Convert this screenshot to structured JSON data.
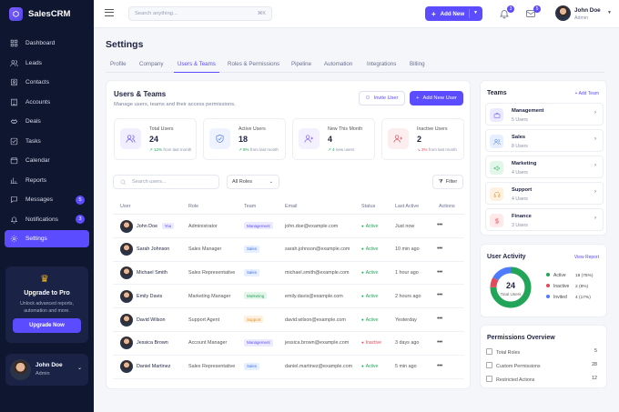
{
  "app": {
    "name": "SalesCRM"
  },
  "sidebar": {
    "items": [
      {
        "label": "Dashboard",
        "icon": "grid-icon"
      },
      {
        "label": "Leads",
        "icon": "users-icon"
      },
      {
        "label": "Contacts",
        "icon": "contact-icon"
      },
      {
        "label": "Accounts",
        "icon": "building-icon"
      },
      {
        "label": "Deals",
        "icon": "handshake-icon"
      },
      {
        "label": "Tasks",
        "icon": "checkbox-icon"
      },
      {
        "label": "Calendar",
        "icon": "calendar-icon"
      },
      {
        "label": "Reports",
        "icon": "bar-chart-icon"
      },
      {
        "label": "Messages",
        "icon": "message-icon",
        "badge": "5"
      },
      {
        "label": "Notifications",
        "icon": "bell-icon",
        "badge": "3"
      },
      {
        "label": "Settings",
        "icon": "gear-icon",
        "active": true
      }
    ],
    "upgrade": {
      "title": "Upgrade to Pro",
      "desc": "Unlock advanced reports, automation and more.",
      "button": "Upgrade Now"
    },
    "user": {
      "name": "John Doe",
      "role": "Admin"
    }
  },
  "topbar": {
    "search_placeholder": "Search anything...",
    "shortcut": "⌘K",
    "add_new": "Add New",
    "notifications_count": "3",
    "messages_count": "5",
    "user": {
      "name": "John Doe",
      "role": "Admin"
    }
  },
  "page": {
    "title": "Settings",
    "tabs": [
      "Profile",
      "Company",
      "Users & Teams",
      "Roles & Permissions",
      "Pipeline",
      "Automation",
      "Integrations",
      "Billing"
    ],
    "active_tab": "Users & Teams"
  },
  "users": {
    "title": "Users & Teams",
    "subtitle": "Manage users, teams and their access permissions.",
    "invite_label": "Invite User",
    "add_label": "Add New User",
    "stats": [
      {
        "label": "Total Users",
        "value": "24",
        "delta": "12%",
        "delta_text": "from last month",
        "trend": "up",
        "color": "#5b4cff"
      },
      {
        "label": "Active Users",
        "value": "18",
        "delta": "8%",
        "delta_text": "from last month",
        "trend": "up",
        "color": "#4f7cff"
      },
      {
        "label": "New This Month",
        "value": "4",
        "delta": "4",
        "delta_text": "new users",
        "trend": "up",
        "color": "#7c5cff"
      },
      {
        "label": "Inactive Users",
        "value": "2",
        "delta": "2%",
        "delta_text": "from last month",
        "trend": "down",
        "color": "#e04a5a"
      }
    ],
    "search_placeholder": "Search users...",
    "roles_filter": "All Roles",
    "filter_label": "Filter",
    "columns": [
      "User",
      "Role",
      "Team",
      "Email",
      "Status",
      "Last Active",
      "Actions"
    ],
    "rows": [
      {
        "name": "John Doe",
        "you": "You",
        "role": "Administrator",
        "team": "Management",
        "email": "john.doe@example.com",
        "status": "Active",
        "last": "Just now"
      },
      {
        "name": "Sarah Johnson",
        "role": "Sales Manager",
        "team": "Sales",
        "email": "sarah.johnson@example.com",
        "status": "Active",
        "last": "10 min ago"
      },
      {
        "name": "Michael Smith",
        "role": "Sales Representative",
        "team": "Sales",
        "email": "michael.smith@example.com",
        "status": "Active",
        "last": "1 hour ago"
      },
      {
        "name": "Emily Davis",
        "role": "Marketing Manager",
        "team": "Marketing",
        "email": "emily.davis@example.com",
        "status": "Active",
        "last": "2 hours ago"
      },
      {
        "name": "David Wilson",
        "role": "Support Agent",
        "team": "Support",
        "email": "david.wilson@example.com",
        "status": "Active",
        "last": "Yesterday"
      },
      {
        "name": "Jessica Brown",
        "role": "Account Manager",
        "team": "Management",
        "email": "jessica.brown@example.com",
        "status": "Inactive",
        "last": "3 days ago"
      },
      {
        "name": "Daniel Martinez",
        "role": "Sales Representative",
        "team": "Sales",
        "email": "daniel.martinez@example.com",
        "status": "Active",
        "last": "5 min ago"
      }
    ]
  },
  "team_colors": {
    "Management": {
      "bg": "#eceaff",
      "fg": "#5b4cff"
    },
    "Sales": {
      "bg": "#e6efff",
      "fg": "#3f6fe0"
    },
    "Marketing": {
      "bg": "#e3f6ea",
      "fg": "#22a559"
    },
    "Support": {
      "bg": "#fff1e0",
      "fg": "#e08a1e"
    }
  },
  "teams": {
    "title": "Teams",
    "add_label": "+ Add Team",
    "items": [
      {
        "name": "Management",
        "count": "5 Users",
        "color": "#5b4cff",
        "bg": "#eceaff",
        "icon": "briefcase-icon"
      },
      {
        "name": "Sales",
        "count": "8 Users",
        "color": "#3f6fe0",
        "bg": "#e6efff",
        "icon": "users-icon"
      },
      {
        "name": "Marketing",
        "count": "4 Users",
        "color": "#22a559",
        "bg": "#e3f6ea",
        "icon": "megaphone-icon"
      },
      {
        "name": "Support",
        "count": "4 Users",
        "color": "#e08a1e",
        "bg": "#fff1e0",
        "icon": "headset-icon"
      },
      {
        "name": "Finance",
        "count": "3 Users",
        "color": "#e04a5a",
        "bg": "#fde8ea",
        "icon": "dollar-icon"
      }
    ]
  },
  "activity": {
    "title": "User Activity",
    "link": "View Report",
    "total": "24",
    "total_label": "Total Users",
    "legend": [
      {
        "label": "Active",
        "value": "18 (75%)",
        "color": "#22a559",
        "share": 0.75
      },
      {
        "label": "Inactive",
        "value": "2 (8%)",
        "color": "#e04a5a",
        "share": 0.08
      },
      {
        "label": "Invited",
        "value": "4 (17%)",
        "color": "#4f7cff",
        "share": 0.17
      }
    ]
  },
  "permissions": {
    "title": "Permissions Overview",
    "items": [
      {
        "label": "Total Roles",
        "value": "5"
      },
      {
        "label": "Custom Permissions",
        "value": "28"
      },
      {
        "label": "Restricted Actions",
        "value": "12"
      }
    ]
  }
}
